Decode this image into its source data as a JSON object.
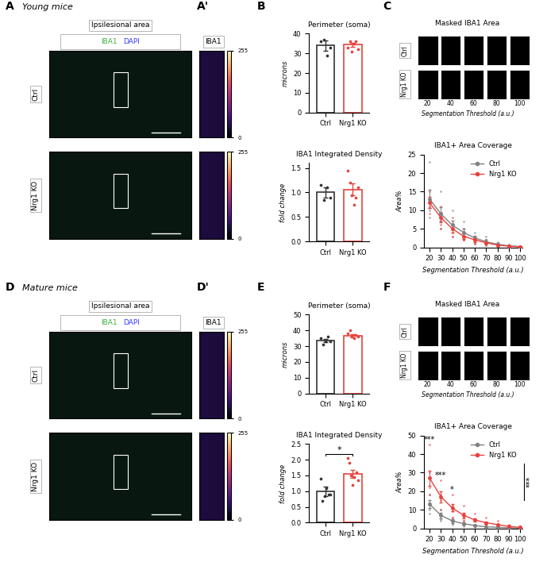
{
  "sections": [
    {
      "letter": "A",
      "title": "Young mice",
      "image_header": "Ipsilesional area",
      "channels": [
        "IBA1",
        "DAPI"
      ],
      "channel_colors": [
        "#3cb043",
        "#3a3aff"
      ],
      "rows": [
        "Ctrl",
        "Nrg1 KO"
      ],
      "inset_letter": "A'",
      "inset_label": "IBA1",
      "colorbar_range": [
        0,
        255
      ],
      "colorbar_ticks": [
        0,
        255
      ],
      "bar_letter": "B",
      "mask_letter": "C",
      "mask_title": "Masked IBA1 Area",
      "mask_rows": [
        "Ctrl",
        "Nrg1 KO"
      ],
      "mask_thresholds": [
        20,
        40,
        60,
        80,
        100
      ],
      "mask_xlabel": "Segmentation Threshold (a.u.)"
    },
    {
      "letter": "D",
      "title": "Mature mice",
      "image_header": "Ipsilesional area",
      "channels": [
        "IBA1",
        "DAPI"
      ],
      "channel_colors": [
        "#3cb043",
        "#3a3aff"
      ],
      "rows": [
        "Ctrl",
        "Nrg1 KO"
      ],
      "inset_letter": "D'",
      "inset_label": "IBA1",
      "colorbar_range": [
        0,
        255
      ],
      "colorbar_ticks": [
        0,
        255
      ],
      "bar_letter": "E",
      "mask_letter": "F",
      "mask_title": "Masked IBA1 Area",
      "mask_rows": [
        "Ctrl",
        "Nrg1 KO"
      ],
      "mask_thresholds": [
        20,
        40,
        60,
        80,
        100
      ],
      "mask_xlabel": "Segmentation Threshold (a.u.)"
    }
  ],
  "chart_data": [
    {
      "type": "bar",
      "title": "Perimeter (soma)",
      "ylabel": "microns",
      "categories": [
        "Ctrl",
        "Nrg1 KO"
      ],
      "values": [
        34,
        34.5
      ],
      "errors": [
        2.5,
        1
      ],
      "points": [
        [
          36,
          37,
          29,
          33
        ],
        [
          33,
          36,
          31,
          35,
          36,
          32
        ]
      ],
      "colors": [
        "#333333",
        "#e8413c"
      ],
      "ylim": [
        0,
        40
      ],
      "yticks": [
        0,
        10,
        20,
        30,
        40
      ]
    },
    {
      "type": "bar",
      "title": "IBA1 Integrated Density",
      "ylabel": "fold change",
      "categories": [
        "Ctrl",
        "Nrg1 KO"
      ],
      "values": [
        1.0,
        1.06
      ],
      "errors": [
        0.1,
        0.12
      ],
      "points": [
        [
          1.15,
          0.85,
          1.1,
          0.9
        ],
        [
          1.45,
          1.2,
          0.95,
          0.75,
          0.9,
          1.1
        ]
      ],
      "colors": [
        "#333333",
        "#e8413c"
      ],
      "ylim": [
        0,
        1.6
      ],
      "yticks": [
        {
          "value": 0,
          "label": "0.0"
        },
        0.5,
        1.0,
        1.5
      ]
    },
    {
      "type": "line",
      "title": "IBA1+ Area Coverage",
      "xlabel": "Segmentation Threshold (a.u.)",
      "ylabel": "Area%",
      "x": [
        20,
        30,
        40,
        50,
        60,
        70,
        80,
        90,
        100
      ],
      "series": [
        {
          "name": "Ctrl",
          "color": "#808080",
          "marker": "o",
          "values": [
            13,
            9,
            6,
            4,
            2.5,
            1.5,
            0.8,
            0.4,
            0.2
          ],
          "errors": [
            2.5,
            1.8,
            1.2,
            1,
            0.7,
            0.5,
            0.3,
            0.2,
            0.1
          ],
          "points": [
            [
              23,
              12,
              10,
              8
            ],
            [
              15,
              9,
              7,
              5
            ],
            [
              10,
              6,
              5,
              3
            ],
            [
              7,
              4,
              3,
              2
            ],
            [
              4,
              3,
              2,
              1
            ],
            [
              3,
              2,
              1,
              0.5
            ],
            [
              1.5,
              1,
              0.5,
              0.2
            ],
            [
              0.8,
              0.4,
              0.3,
              0.1
            ],
            [
              0.4,
              0.2,
              0.1,
              0.1
            ]
          ]
        },
        {
          "name": "Nrg1 KO",
          "color": "#e8413c",
          "marker": "o",
          "values": [
            12,
            8,
            5,
            3,
            2,
            1.2,
            0.6,
            0.3,
            0.1
          ],
          "errors": [
            1.5,
            1.2,
            1,
            0.7,
            0.5,
            0.3,
            0.2,
            0.1,
            0.05
          ],
          "points": [
            [
              15,
              13,
              11,
              9
            ],
            [
              11,
              8,
              6,
              5
            ],
            [
              8,
              5,
              4,
              3
            ],
            [
              5,
              3,
              2,
              2
            ],
            [
              3,
              2,
              1.5,
              1
            ],
            [
              2,
              1,
              1,
              0.5
            ],
            [
              1,
              0.5,
              0.5,
              0.3
            ],
            [
              0.5,
              0.3,
              0.2,
              0.1
            ],
            [
              0.2,
              0.1,
              0.1,
              0
            ]
          ]
        }
      ],
      "legend": "upper right",
      "xlim": [
        15,
        102
      ],
      "xticks": [
        20,
        30,
        40,
        50,
        60,
        70,
        80,
        90,
        100
      ],
      "ylim": [
        0,
        25
      ],
      "yticks": [
        0,
        5,
        10,
        15,
        20,
        25
      ]
    },
    {
      "type": "bar",
      "title": "Perimeter (soma)",
      "ylabel": "microns",
      "categories": [
        "Ctrl",
        "Nrg1 KO"
      ],
      "values": [
        33.5,
        36.5
      ],
      "errors": [
        1,
        1
      ],
      "points": [
        [
          35,
          31,
          33,
          36,
          33
        ],
        [
          38,
          40,
          36,
          35,
          37,
          36
        ]
      ],
      "colors": [
        "#333333",
        "#e8413c"
      ],
      "ylim": [
        0,
        50
      ],
      "yticks": [
        0,
        10,
        20,
        30,
        40,
        50
      ]
    },
    {
      "type": "bar",
      "title": "IBA1 Integrated Density",
      "ylabel": "fold change",
      "categories": [
        "Ctrl",
        "Nrg1 KO"
      ],
      "values": [
        1.0,
        1.55
      ],
      "errors": [
        0.15,
        0.12
      ],
      "points": [
        [
          1.4,
          0.7,
          0.85,
          1.1,
          0.9,
          0.9
        ],
        [
          2.05,
          1.9,
          1.5,
          1.2,
          1.45,
          1.6,
          1.35
        ]
      ],
      "colors": [
        "#333333",
        "#e8413c"
      ],
      "ylim": [
        0,
        2.5
      ],
      "yticks": [
        {
          "value": 0,
          "label": "0.0"
        },
        0.5,
        1.0,
        1.5,
        2.0,
        2.5
      ],
      "significance": "*"
    },
    {
      "type": "line",
      "title": "IBA1+ Area Coverage",
      "xlabel": "Segmentation Threshold (a.u.)",
      "ylabel": "Area%",
      "x": [
        20,
        30,
        40,
        50,
        60,
        70,
        80,
        90,
        100
      ],
      "series": [
        {
          "name": "Ctrl",
          "color": "#808080",
          "marker": "o",
          "values": [
            13,
            7,
            4,
            2.5,
            1.5,
            0.8,
            0.5,
            0.3,
            0.1
          ],
          "errors": [
            2,
            1.5,
            1,
            0.7,
            0.4,
            0.3,
            0.2,
            0.1,
            0.05
          ],
          "points": [
            [
              18,
              14,
              10,
              8
            ],
            [
              10,
              7,
              5,
              4
            ],
            [
              6,
              4,
              3,
              2
            ],
            [
              4,
              3,
              2,
              1
            ],
            [
              2,
              2,
              1,
              0.5
            ],
            [
              1.5,
              1,
              0.5,
              0.3
            ],
            [
              1,
              0.5,
              0.3,
              0.2
            ],
            [
              0.5,
              0.3,
              0.2,
              0.1
            ],
            [
              0.2,
              0.1,
              0.1,
              0
            ]
          ]
        },
        {
          "name": "Nrg1 KO",
          "color": "#e8413c",
          "marker": "o",
          "values": [
            27,
            17,
            11,
            7,
            4.5,
            3,
            2,
            1,
            0.5
          ],
          "errors": [
            4,
            3,
            2,
            1.5,
            1,
            0.7,
            0.5,
            0.3,
            0.15
          ],
          "points": [
            [
              45,
              30,
              22,
              18
            ],
            [
              26,
              18,
              15,
              10
            ],
            [
              18,
              12,
              9,
              6
            ],
            [
              12,
              8,
              6,
              4
            ],
            [
              8,
              5,
              4,
              2
            ],
            [
              6,
              3,
              2,
              1.5
            ],
            [
              4,
              2,
              1.5,
              1
            ],
            [
              2,
              1,
              0.8,
              0.5
            ],
            [
              1,
              0.5,
              0.3,
              0.2
            ]
          ]
        }
      ],
      "legend": "upper right",
      "xlim": [
        15,
        102
      ],
      "xticks": [
        20,
        30,
        40,
        50,
        60,
        70,
        80,
        90,
        100
      ],
      "ylim": [
        0,
        50
      ],
      "yticks": [
        0,
        10,
        20,
        30,
        40,
        50
      ],
      "significance": [
        {
          "x": 20,
          "label": "***"
        },
        {
          "x": 30,
          "label": "***"
        },
        {
          "x": 40,
          "label": "*"
        }
      ],
      "overall_significance": "***"
    }
  ]
}
